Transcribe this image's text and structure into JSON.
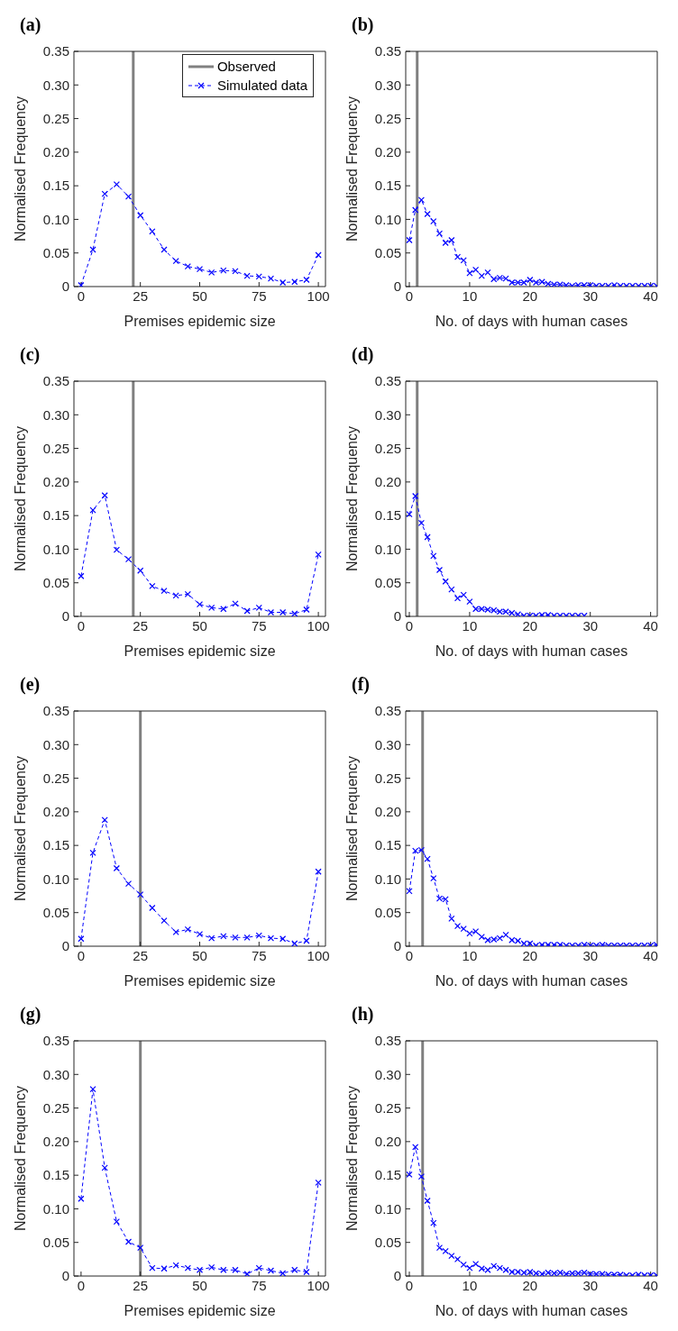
{
  "chart_data": [
    {
      "type": "line",
      "title": "(a)",
      "xlabel": "Premises epidemic size",
      "ylabel": "Normalised Frequency",
      "xlim": [
        -3,
        103
      ],
      "xticks": [
        0,
        25,
        50,
        75,
        100
      ],
      "ylim": [
        0,
        0.35
      ],
      "yticks": [
        {
          "value": 0,
          "label": "0"
        },
        {
          "value": 0.05,
          "label": "0.05"
        },
        {
          "value": 0.1,
          "label": "0.10"
        },
        {
          "value": 0.15,
          "label": "0.15"
        },
        {
          "value": 0.2,
          "label": "0.20"
        },
        {
          "value": 0.25,
          "label": "0.25"
        },
        {
          "value": 0.3,
          "label": "0.30"
        },
        {
          "value": 0.35,
          "label": "0.35"
        }
      ],
      "marker": "cross",
      "line_style": "dashed",
      "legend": "top right",
      "x": [
        0,
        5,
        10,
        15,
        20,
        25,
        30,
        35,
        40,
        45,
        50,
        55,
        60,
        65,
        70,
        75,
        80,
        85,
        90,
        95,
        100
      ],
      "series": [
        {
          "name": "Observed",
          "line_style": "solid",
          "marker": "none",
          "color": "#808080",
          "x": [
            22,
            22
          ],
          "values": [
            0,
            0.35
          ]
        },
        {
          "name": "Simulated data",
          "color": "#0000ff",
          "values": [
            0.002,
            0.055,
            0.138,
            0.152,
            0.134,
            0.106,
            0.082,
            0.055,
            0.038,
            0.03,
            0.026,
            0.021,
            0.024,
            0.023,
            0.016,
            0.015,
            0.012,
            0.006,
            0.007,
            0.01,
            0.047
          ]
        }
      ]
    },
    {
      "type": "line",
      "title": "(b)",
      "xlabel": "No. of days with human cases",
      "ylabel": "Normalised Frequency",
      "xlim": [
        -0.6,
        41.1
      ],
      "xticks": [
        0,
        10,
        20,
        30,
        40
      ],
      "ylim": [
        0,
        0.35
      ],
      "yticks": [
        {
          "value": 0,
          "label": "0"
        },
        {
          "value": 0.05,
          "label": "0.05"
        },
        {
          "value": 0.1,
          "label": "0.10"
        },
        {
          "value": 0.15,
          "label": "0.15"
        },
        {
          "value": 0.2,
          "label": "0.20"
        },
        {
          "value": 0.25,
          "label": "0.25"
        },
        {
          "value": 0.3,
          "label": "0.30"
        },
        {
          "value": 0.35,
          "label": "0.35"
        }
      ],
      "marker": "cross",
      "line_style": "dashed",
      "ref_lines": [
        {
          "axis": "x",
          "value": 1.3,
          "color": "#808080"
        }
      ],
      "x": [
        0,
        1,
        2,
        3,
        4,
        5,
        6,
        7,
        8,
        9,
        10,
        11,
        12,
        13,
        14,
        15,
        16,
        17,
        18,
        19,
        20,
        21,
        22,
        23,
        24,
        25,
        26,
        27,
        28,
        29,
        30,
        31,
        32,
        33,
        34,
        35,
        36,
        37,
        38,
        39,
        40,
        41
      ],
      "series": [
        {
          "color": "#0000ff",
          "values": [
            0.069,
            0.114,
            0.129,
            0.108,
            0.097,
            0.079,
            0.065,
            0.069,
            0.044,
            0.039,
            0.02,
            0.025,
            0.016,
            0.021,
            0.011,
            0.013,
            0.012,
            0.006,
            0.006,
            0.006,
            0.01,
            0.006,
            0.007,
            0.004,
            0.003,
            0.003,
            0.002,
            0.001,
            0.002,
            0.002,
            0.002,
            0.001,
            0.001,
            0.001,
            0.002,
            0.001,
            0.001,
            0.001,
            0.001,
            0.001,
            0.001,
            0.001
          ]
        }
      ]
    },
    {
      "type": "line",
      "title": "(c)",
      "xlabel": "Premises epidemic size",
      "ylabel": "Normalised Frequency",
      "xlim": [
        -3,
        103
      ],
      "xticks": [
        0,
        25,
        50,
        75,
        100
      ],
      "ylim": [
        0,
        0.35
      ],
      "yticks": [
        {
          "value": 0,
          "label": "0"
        },
        {
          "value": 0.05,
          "label": "0.05"
        },
        {
          "value": 0.1,
          "label": "0.10"
        },
        {
          "value": 0.15,
          "label": "0.15"
        },
        {
          "value": 0.2,
          "label": "0.20"
        },
        {
          "value": 0.25,
          "label": "0.25"
        },
        {
          "value": 0.3,
          "label": "0.30"
        },
        {
          "value": 0.35,
          "label": "0.35"
        }
      ],
      "marker": "cross",
      "line_style": "dashed",
      "ref_lines": [
        {
          "axis": "x",
          "value": 22,
          "color": "#808080"
        }
      ],
      "x": [
        0,
        5,
        10,
        15,
        20,
        25,
        30,
        35,
        40,
        45,
        50,
        55,
        60,
        65,
        70,
        75,
        80,
        85,
        90,
        95,
        100
      ],
      "series": [
        {
          "color": "#0000ff",
          "values": [
            0.06,
            0.158,
            0.18,
            0.099,
            0.085,
            0.068,
            0.045,
            0.038,
            0.031,
            0.033,
            0.018,
            0.013,
            0.011,
            0.019,
            0.008,
            0.013,
            0.006,
            0.006,
            0.004,
            0.01,
            0.092
          ]
        }
      ]
    },
    {
      "type": "line",
      "title": "(d)",
      "xlabel": "No. of days with human cases",
      "ylabel": "Normalised Frequency",
      "xlim": [
        -0.6,
        41.1
      ],
      "xticks": [
        0,
        10,
        20,
        30,
        40
      ],
      "ylim": [
        0,
        0.35
      ],
      "yticks": [
        {
          "value": 0,
          "label": "0"
        },
        {
          "value": 0.05,
          "label": "0.05"
        },
        {
          "value": 0.1,
          "label": "0.10"
        },
        {
          "value": 0.15,
          "label": "0.15"
        },
        {
          "value": 0.2,
          "label": "0.20"
        },
        {
          "value": 0.25,
          "label": "0.25"
        },
        {
          "value": 0.3,
          "label": "0.30"
        },
        {
          "value": 0.35,
          "label": "0.35"
        }
      ],
      "marker": "cross",
      "line_style": "dashed",
      "ref_lines": [
        {
          "axis": "x",
          "value": 1.3,
          "color": "#808080"
        }
      ],
      "x": [
        0,
        1,
        2,
        3,
        4,
        5,
        6,
        7,
        8,
        9,
        10,
        11,
        12,
        13,
        14,
        15,
        16,
        17,
        18,
        19,
        20,
        21,
        22,
        23,
        24,
        25,
        26,
        27,
        28,
        29
      ],
      "series": [
        {
          "color": "#0000ff",
          "values": [
            0.152,
            0.179,
            0.139,
            0.118,
            0.09,
            0.069,
            0.052,
            0.04,
            0.027,
            0.032,
            0.022,
            0.011,
            0.011,
            0.01,
            0.009,
            0.007,
            0.007,
            0.005,
            0.003,
            0.001,
            0.001,
            0.001,
            0.002,
            0.002,
            0.001,
            0.001,
            0.001,
            0.001,
            0.001,
            0.001
          ]
        }
      ]
    },
    {
      "type": "line",
      "title": "(e)",
      "xlabel": "Premises epidemic size",
      "ylabel": "Normalised Frequency",
      "xlim": [
        -3,
        103
      ],
      "xticks": [
        0,
        25,
        50,
        75,
        100
      ],
      "ylim": [
        0,
        0.35
      ],
      "yticks": [
        {
          "value": 0,
          "label": "0"
        },
        {
          "value": 0.05,
          "label": "0.05"
        },
        {
          "value": 0.1,
          "label": "0.10"
        },
        {
          "value": 0.15,
          "label": "0.15"
        },
        {
          "value": 0.2,
          "label": "0.20"
        },
        {
          "value": 0.25,
          "label": "0.25"
        },
        {
          "value": 0.3,
          "label": "0.30"
        },
        {
          "value": 0.35,
          "label": "0.35"
        }
      ],
      "marker": "cross",
      "line_style": "dashed",
      "ref_lines": [
        {
          "axis": "x",
          "value": 25,
          "color": "#808080"
        }
      ],
      "x": [
        0,
        5,
        10,
        15,
        20,
        25,
        30,
        35,
        40,
        45,
        50,
        55,
        60,
        65,
        70,
        75,
        80,
        85,
        90,
        95,
        100
      ],
      "series": [
        {
          "color": "#0000ff",
          "values": [
            0.011,
            0.139,
            0.188,
            0.116,
            0.093,
            0.077,
            0.057,
            0.038,
            0.021,
            0.025,
            0.018,
            0.012,
            0.015,
            0.013,
            0.013,
            0.016,
            0.012,
            0.011,
            0.004,
            0.008,
            0.111
          ]
        }
      ]
    },
    {
      "type": "line",
      "title": "(f)",
      "xlabel": "No. of days with human cases",
      "ylabel": "Normalised Frequency",
      "xlim": [
        -0.6,
        41.1
      ],
      "xticks": [
        0,
        10,
        20,
        30,
        40
      ],
      "ylim": [
        0,
        0.35
      ],
      "yticks": [
        {
          "value": 0,
          "label": "0"
        },
        {
          "value": 0.05,
          "label": "0.05"
        },
        {
          "value": 0.1,
          "label": "0.10"
        },
        {
          "value": 0.15,
          "label": "0.15"
        },
        {
          "value": 0.2,
          "label": "0.20"
        },
        {
          "value": 0.25,
          "label": "0.25"
        },
        {
          "value": 0.3,
          "label": "0.30"
        },
        {
          "value": 0.35,
          "label": "0.35"
        }
      ],
      "marker": "cross",
      "line_style": "dashed",
      "ref_lines": [
        {
          "axis": "x",
          "value": 2.2,
          "color": "#808080"
        }
      ],
      "x": [
        0,
        1,
        2,
        3,
        4,
        5,
        6,
        7,
        8,
        9,
        10,
        11,
        12,
        13,
        14,
        15,
        16,
        17,
        18,
        19,
        20,
        21,
        22,
        23,
        24,
        25,
        26,
        27,
        28,
        29,
        30,
        31,
        32,
        33,
        34,
        35,
        36,
        37,
        38,
        39,
        40,
        41
      ],
      "series": [
        {
          "color": "#0000ff",
          "values": [
            0.082,
            0.142,
            0.143,
            0.13,
            0.101,
            0.071,
            0.07,
            0.041,
            0.03,
            0.026,
            0.019,
            0.022,
            0.014,
            0.009,
            0.01,
            0.012,
            0.017,
            0.009,
            0.008,
            0.004,
            0.004,
            0.001,
            0.002,
            0.002,
            0.002,
            0.002,
            0.001,
            0.001,
            0.001,
            0.002,
            0.001,
            0.001,
            0.002,
            0.001,
            0.001,
            0.001,
            0.001,
            0.001,
            0.001,
            0.001,
            0.001,
            0.002
          ]
        }
      ]
    },
    {
      "type": "line",
      "title": "(g)",
      "xlabel": "Premises epidemic size",
      "ylabel": "Normalised Frequency",
      "xlim": [
        -3,
        103
      ],
      "xticks": [
        0,
        25,
        50,
        75,
        100
      ],
      "ylim": [
        0,
        0.35
      ],
      "yticks": [
        {
          "value": 0,
          "label": "0"
        },
        {
          "value": 0.05,
          "label": "0.05"
        },
        {
          "value": 0.1,
          "label": "0.10"
        },
        {
          "value": 0.15,
          "label": "0.15"
        },
        {
          "value": 0.2,
          "label": "0.20"
        },
        {
          "value": 0.25,
          "label": "0.25"
        },
        {
          "value": 0.3,
          "label": "0.30"
        },
        {
          "value": 0.35,
          "label": "0.35"
        }
      ],
      "marker": "cross",
      "line_style": "dashed",
      "ref_lines": [
        {
          "axis": "x",
          "value": 25,
          "color": "#808080"
        }
      ],
      "x": [
        0,
        5,
        10,
        15,
        20,
        25,
        30,
        35,
        40,
        45,
        50,
        55,
        60,
        65,
        70,
        75,
        80,
        85,
        90,
        95,
        100
      ],
      "series": [
        {
          "color": "#0000ff",
          "values": [
            0.115,
            0.278,
            0.161,
            0.081,
            0.051,
            0.042,
            0.012,
            0.011,
            0.016,
            0.012,
            0.009,
            0.013,
            0.009,
            0.009,
            0.003,
            0.012,
            0.008,
            0.004,
            0.009,
            0.006,
            0.139
          ]
        }
      ]
    },
    {
      "type": "line",
      "title": "(h)",
      "xlabel": "No. of days with human cases",
      "ylabel": "Normalised Frequency",
      "xlim": [
        -0.6,
        41.1
      ],
      "xticks": [
        0,
        10,
        20,
        30,
        40
      ],
      "ylim": [
        0,
        0.35
      ],
      "yticks": [
        {
          "value": 0,
          "label": "0"
        },
        {
          "value": 0.05,
          "label": "0.05"
        },
        {
          "value": 0.1,
          "label": "0.10"
        },
        {
          "value": 0.15,
          "label": "0.15"
        },
        {
          "value": 0.2,
          "label": "0.20"
        },
        {
          "value": 0.25,
          "label": "0.25"
        },
        {
          "value": 0.3,
          "label": "0.30"
        },
        {
          "value": 0.35,
          "label": "0.35"
        }
      ],
      "marker": "cross",
      "line_style": "dashed",
      "ref_lines": [
        {
          "axis": "x",
          "value": 2.2,
          "color": "#808080"
        }
      ],
      "x": [
        0,
        1,
        2,
        3,
        4,
        5,
        6,
        7,
        8,
        9,
        10,
        11,
        12,
        13,
        14,
        15,
        16,
        17,
        18,
        19,
        20,
        21,
        22,
        23,
        24,
        25,
        26,
        27,
        28,
        29,
        30,
        31,
        32,
        33,
        34,
        35,
        36,
        37,
        38,
        39,
        40,
        41
      ],
      "series": [
        {
          "color": "#0000ff",
          "values": [
            0.151,
            0.192,
            0.148,
            0.112,
            0.079,
            0.042,
            0.037,
            0.03,
            0.025,
            0.017,
            0.012,
            0.018,
            0.011,
            0.009,
            0.015,
            0.012,
            0.009,
            0.006,
            0.006,
            0.005,
            0.006,
            0.004,
            0.003,
            0.005,
            0.004,
            0.005,
            0.003,
            0.004,
            0.004,
            0.005,
            0.003,
            0.003,
            0.003,
            0.002,
            0.002,
            0.002,
            0.001,
            0.001,
            0.002,
            0.001,
            0.001,
            0.001
          ]
        }
      ]
    }
  ]
}
